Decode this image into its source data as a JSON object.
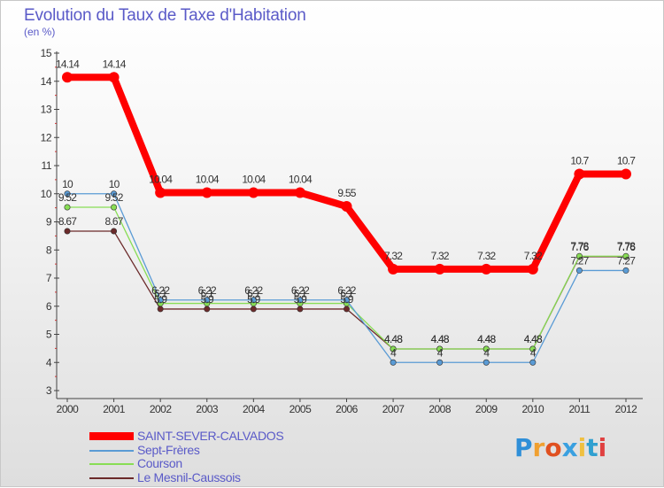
{
  "chart_data": {
    "type": "line",
    "title": "Evolution du Taux de Taxe d'Habitation",
    "ylabel": "(en %)",
    "xlabel": "",
    "ylim": [
      3,
      15
    ],
    "yticks": [
      "3",
      "4",
      "5",
      "6",
      "7",
      "8",
      "9",
      "10",
      "11",
      "12",
      "13",
      "14",
      "15"
    ],
    "x": [
      "2000",
      "2001",
      "2002",
      "2003",
      "2004",
      "2005",
      "2006",
      "2007",
      "2008",
      "2009",
      "2010",
      "2011",
      "2012"
    ],
    "series": [
      {
        "name": "SAINT-SEVER-CALVADOS",
        "color": "#ff0000",
        "values": [
          14.14,
          14.14,
          10.04,
          10.04,
          10.04,
          10.04,
          9.55,
          7.32,
          7.32,
          7.32,
          7.32,
          10.7,
          10.7
        ],
        "labels": [
          "14.14",
          "14.14",
          "10.04",
          "10.04",
          "10.04",
          "10.04",
          "9.55",
          "7.32",
          "7.32",
          "7.32",
          "7.32",
          "10.7",
          "10.7"
        ]
      },
      {
        "name": "Sept-Frères",
        "color": "#5a9bd5",
        "values": [
          10,
          10,
          6.22,
          6.22,
          6.22,
          6.22,
          6.22,
          4,
          4,
          4,
          4,
          7.27,
          7.27
        ],
        "labels": [
          "10",
          "10",
          "6.22",
          "6.22",
          "6.22",
          "6.22",
          "6.22",
          "4",
          "4",
          "4",
          "4",
          "7.27",
          "7.27"
        ]
      },
      {
        "name": "Courson",
        "color": "#88dd55",
        "values": [
          9.52,
          9.52,
          6.1,
          6.1,
          6.1,
          6.1,
          6.1,
          4.48,
          4.48,
          4.48,
          4.48,
          7.78,
          7.78
        ],
        "labels": [
          "9.52",
          "9.52",
          "6.1",
          "6.1",
          "6.1",
          "6.1",
          "6.1",
          "4.48",
          "4.48",
          "4.48",
          "4.48",
          "7.78",
          "7.78"
        ]
      },
      {
        "name": "Le Mesnil-Caussois",
        "color": "#6b2a2a",
        "values": [
          8.67,
          8.67,
          5.9,
          5.9,
          5.9,
          5.9,
          5.9,
          4.48,
          4.48,
          4.48,
          4.48,
          7.76,
          7.76
        ],
        "labels": [
          "8.67",
          "8.67",
          "5.9",
          "5.9",
          "5.9",
          "5.9",
          "5.9",
          "4.48",
          "4.48",
          "4.48",
          "4.48",
          "7.76",
          "7.76"
        ]
      }
    ]
  },
  "logo": {
    "letters": [
      "P",
      "r",
      "o",
      "x",
      "i",
      "t",
      "i"
    ],
    "colors": [
      "#2f8fd8",
      "#f0a030",
      "#e05020",
      "#3aa0e0",
      "#f0c040",
      "#30a0d0",
      "#e04040"
    ]
  }
}
